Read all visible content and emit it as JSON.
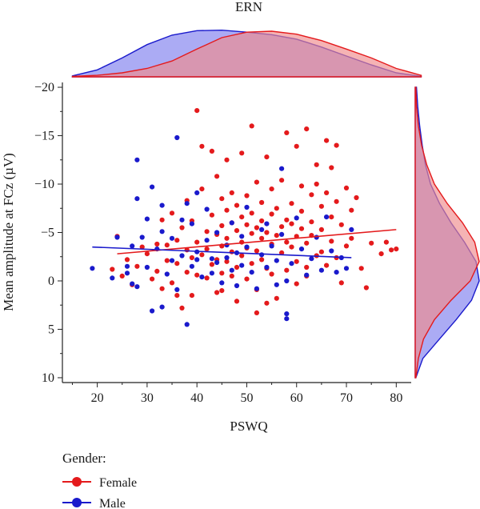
{
  "chart_data": {
    "type": "scatter",
    "title": "ERN",
    "xlabel": "PSWQ",
    "ylabel": "Mean amplitude at FCz (µV)",
    "xlim": [
      13,
      83
    ],
    "ylim": [
      -20.5,
      10.5
    ],
    "y_inverted": true,
    "x_ticks": [
      20,
      30,
      40,
      50,
      60,
      70,
      80
    ],
    "y_ticks": [
      -20,
      -15,
      -10,
      -5,
      0,
      5,
      10
    ],
    "y_tick_labels": [
      "−20",
      "−15",
      "−10",
      "−5",
      "0",
      "5",
      "10"
    ],
    "grid": false,
    "legend": {
      "title": "Gender:",
      "position": "bottom-left"
    },
    "series": [
      {
        "name": "Female",
        "color": "#e41a1c",
        "points": [
          [
            23,
            -1.2
          ],
          [
            24,
            -4.6
          ],
          [
            25,
            -0.5
          ],
          [
            26,
            -2.2
          ],
          [
            27,
            0.4
          ],
          [
            28,
            -1.5
          ],
          [
            29,
            -3.5
          ],
          [
            30,
            -2.8
          ],
          [
            31,
            -0.2
          ],
          [
            32,
            -3.8
          ],
          [
            32,
            -1.0
          ],
          [
            33,
            0.8
          ],
          [
            33,
            -6.3
          ],
          [
            34,
            -2.1
          ],
          [
            34,
            -3.7
          ],
          [
            35,
            -7.0
          ],
          [
            35,
            0.2
          ],
          [
            36,
            -4.2
          ],
          [
            36,
            -1.8
          ],
          [
            37,
            -5.5
          ],
          [
            37,
            2.8
          ],
          [
            38,
            -0.9
          ],
          [
            38,
            -3.2
          ],
          [
            38,
            -8.3
          ],
          [
            39,
            -6.2
          ],
          [
            39,
            -2.4
          ],
          [
            39,
            1.5
          ],
          [
            40,
            -4.0
          ],
          [
            40,
            -17.6
          ],
          [
            40,
            -0.6
          ],
          [
            41,
            -2.7
          ],
          [
            41,
            -13.9
          ],
          [
            41,
            -9.5
          ],
          [
            42,
            -5.1
          ],
          [
            42,
            -3.3
          ],
          [
            42,
            -0.3
          ],
          [
            43,
            -6.8
          ],
          [
            43,
            -1.7
          ],
          [
            43,
            -13.4
          ],
          [
            44,
            -4.8
          ],
          [
            44,
            -2.2
          ],
          [
            44,
            -10.8
          ],
          [
            44,
            1.2
          ],
          [
            45,
            -5.7
          ],
          [
            45,
            -3.6
          ],
          [
            45,
            -8.5
          ],
          [
            45,
            -0.8
          ],
          [
            46,
            -7.3
          ],
          [
            46,
            -4.4
          ],
          [
            46,
            -2.0
          ],
          [
            46,
            -12.5
          ],
          [
            47,
            -6.0
          ],
          [
            47,
            -3.0
          ],
          [
            47,
            -0.5
          ],
          [
            47,
            -9.1
          ],
          [
            48,
            -5.2
          ],
          [
            48,
            -1.4
          ],
          [
            48,
            -7.8
          ],
          [
            48,
            2.1
          ],
          [
            49,
            -4.0
          ],
          [
            49,
            -6.6
          ],
          [
            49,
            -2.6
          ],
          [
            49,
            -13.2
          ],
          [
            50,
            -5.8
          ],
          [
            50,
            -3.4
          ],
          [
            50,
            -8.8
          ],
          [
            50,
            -0.2
          ],
          [
            51,
            -16.0
          ],
          [
            51,
            -4.9
          ],
          [
            51,
            -7.0
          ],
          [
            51,
            -1.8
          ],
          [
            52,
            -5.5
          ],
          [
            52,
            -10.2
          ],
          [
            52,
            -3.1
          ],
          [
            52,
            0.9
          ],
          [
            53,
            -6.2
          ],
          [
            53,
            -4.4
          ],
          [
            53,
            -8.1
          ],
          [
            53,
            -2.2
          ],
          [
            54,
            -5.0
          ],
          [
            54,
            -12.8
          ],
          [
            54,
            -1.3
          ],
          [
            55,
            -6.9
          ],
          [
            55,
            -3.8
          ],
          [
            55,
            -9.5
          ],
          [
            55,
            -0.7
          ],
          [
            56,
            -4.7
          ],
          [
            56,
            -7.5
          ],
          [
            56,
            1.8
          ],
          [
            57,
            -5.6
          ],
          [
            57,
            -2.9
          ],
          [
            57,
            -10.4
          ],
          [
            58,
            -15.3
          ],
          [
            58,
            -6.3
          ],
          [
            58,
            -4.0
          ],
          [
            58,
            -1.1
          ],
          [
            59,
            -8.0
          ],
          [
            59,
            -3.5
          ],
          [
            59,
            -5.9
          ],
          [
            60,
            -4.6
          ],
          [
            60,
            -13.9
          ],
          [
            60,
            -2.0
          ],
          [
            60,
            0.3
          ],
          [
            61,
            -7.2
          ],
          [
            61,
            -5.4
          ],
          [
            61,
            -9.8
          ],
          [
            62,
            -15.7
          ],
          [
            62,
            -3.9
          ],
          [
            62,
            -1.4
          ],
          [
            63,
            -6.1
          ],
          [
            63,
            -8.9
          ],
          [
            63,
            -4.7
          ],
          [
            64,
            -12.0
          ],
          [
            64,
            -2.6
          ],
          [
            64,
            -10.0
          ],
          [
            65,
            -5.3
          ],
          [
            65,
            -7.7
          ],
          [
            65,
            -3.0
          ],
          [
            66,
            -14.5
          ],
          [
            66,
            -9.1
          ],
          [
            66,
            -1.6
          ],
          [
            67,
            -6.6
          ],
          [
            67,
            -4.1
          ],
          [
            67,
            -11.7
          ],
          [
            68,
            -14.0
          ],
          [
            68,
            -8.2
          ],
          [
            68,
            -2.4
          ],
          [
            69,
            -5.8
          ],
          [
            69,
            0.2
          ],
          [
            70,
            -9.6
          ],
          [
            70,
            -3.6
          ],
          [
            71,
            -7.3
          ],
          [
            71,
            -4.4
          ],
          [
            72,
            -8.6
          ],
          [
            73,
            -1.3
          ],
          [
            74,
            0.7
          ],
          [
            75,
            -3.9
          ],
          [
            77,
            -2.8
          ],
          [
            78,
            -4.0
          ],
          [
            79,
            -3.2
          ],
          [
            80,
            -3.3
          ],
          [
            62,
            -0.5
          ],
          [
            54,
            2.3
          ],
          [
            45,
            1.0
          ],
          [
            36,
            1.5
          ],
          [
            52,
            3.3
          ]
        ],
        "trend": {
          "x": [
            24,
            80
          ],
          "y": [
            -2.8,
            -5.3
          ]
        }
      },
      {
        "name": "Male",
        "color": "#1a1acc",
        "points": [
          [
            19,
            -1.3
          ],
          [
            23,
            -0.3
          ],
          [
            24,
            -4.5
          ],
          [
            26,
            -1.5
          ],
          [
            26,
            -0.8
          ],
          [
            27,
            -3.6
          ],
          [
            27,
            0.3
          ],
          [
            28,
            -12.5
          ],
          [
            28,
            -8.5
          ],
          [
            28,
            0.6
          ],
          [
            29,
            -4.5
          ],
          [
            30,
            -6.4
          ],
          [
            30,
            -1.4
          ],
          [
            31,
            -9.7
          ],
          [
            31,
            3.1
          ],
          [
            32,
            -3.3
          ],
          [
            33,
            -7.8
          ],
          [
            33,
            -5.1
          ],
          [
            33,
            2.7
          ],
          [
            34,
            -0.7
          ],
          [
            35,
            -4.4
          ],
          [
            35,
            -2.1
          ],
          [
            36,
            -14.8
          ],
          [
            36,
            0.9
          ],
          [
            37,
            -6.3
          ],
          [
            37,
            -2.6
          ],
          [
            38,
            4.5
          ],
          [
            38,
            -8.0
          ],
          [
            39,
            -5.9
          ],
          [
            39,
            -1.5
          ],
          [
            40,
            -9.1
          ],
          [
            40,
            -3.0
          ],
          [
            41,
            -0.4
          ],
          [
            42,
            -7.4
          ],
          [
            42,
            -4.2
          ],
          [
            43,
            -2.3
          ],
          [
            43,
            -0.8
          ],
          [
            44,
            -5.0
          ],
          [
            44,
            -1.9
          ],
          [
            45,
            0.2
          ],
          [
            46,
            -3.7
          ],
          [
            47,
            -1.1
          ],
          [
            47,
            -6.0
          ],
          [
            48,
            -2.9
          ],
          [
            48,
            0.5
          ],
          [
            49,
            -4.6
          ],
          [
            49,
            -1.6
          ],
          [
            50,
            -7.6
          ],
          [
            50,
            -3.5
          ],
          [
            51,
            -0.9
          ],
          [
            52,
            0.8
          ],
          [
            53,
            -2.7
          ],
          [
            53,
            -5.3
          ],
          [
            54,
            -1.4
          ],
          [
            55,
            -3.6
          ],
          [
            56,
            -2.1
          ],
          [
            56,
            0.4
          ],
          [
            57,
            -11.6
          ],
          [
            57,
            -4.8
          ],
          [
            58,
            3.4
          ],
          [
            58,
            3.9
          ],
          [
            59,
            -1.8
          ],
          [
            60,
            -6.5
          ],
          [
            61,
            -3.3
          ],
          [
            62,
            -0.6
          ],
          [
            63,
            -2.3
          ],
          [
            64,
            -4.5
          ],
          [
            65,
            -1.1
          ],
          [
            66,
            -6.6
          ],
          [
            67,
            -3.1
          ],
          [
            68,
            -0.9
          ],
          [
            69,
            -2.4
          ],
          [
            70,
            -1.3
          ],
          [
            71,
            -5.3
          ],
          [
            54,
            -5.9
          ],
          [
            46,
            -2.4
          ],
          [
            40,
            -2.2
          ],
          [
            58,
            0.0
          ]
        ],
        "trend": {
          "x": [
            19,
            71
          ],
          "y": [
            -3.5,
            -2.4
          ]
        }
      }
    ],
    "marginal_top": {
      "x": [
        15,
        20,
        25,
        30,
        35,
        40,
        45,
        50,
        55,
        60,
        65,
        70,
        75,
        80,
        85
      ],
      "Female": [
        0.01,
        0.03,
        0.08,
        0.17,
        0.32,
        0.56,
        0.79,
        0.9,
        0.92,
        0.86,
        0.73,
        0.56,
        0.38,
        0.17,
        0.03
      ],
      "Male": [
        0.02,
        0.14,
        0.38,
        0.65,
        0.84,
        0.93,
        0.94,
        0.9,
        0.85,
        0.76,
        0.6,
        0.42,
        0.24,
        0.08,
        0.01
      ]
    },
    "marginal_right": {
      "y": [
        -20,
        -18,
        -16,
        -14,
        -12,
        -10,
        -8,
        -6,
        -4,
        -2,
        0,
        2,
        4,
        6,
        8,
        10
      ],
      "Female": [
        0.01,
        0.02,
        0.05,
        0.1,
        0.18,
        0.3,
        0.5,
        0.74,
        0.93,
        1.0,
        0.86,
        0.56,
        0.3,
        0.13,
        0.05,
        0.01
      ],
      "Male": [
        0.02,
        0.04,
        0.07,
        0.11,
        0.16,
        0.24,
        0.38,
        0.56,
        0.77,
        0.95,
        1.0,
        0.88,
        0.64,
        0.38,
        0.12,
        0.01
      ]
    }
  }
}
